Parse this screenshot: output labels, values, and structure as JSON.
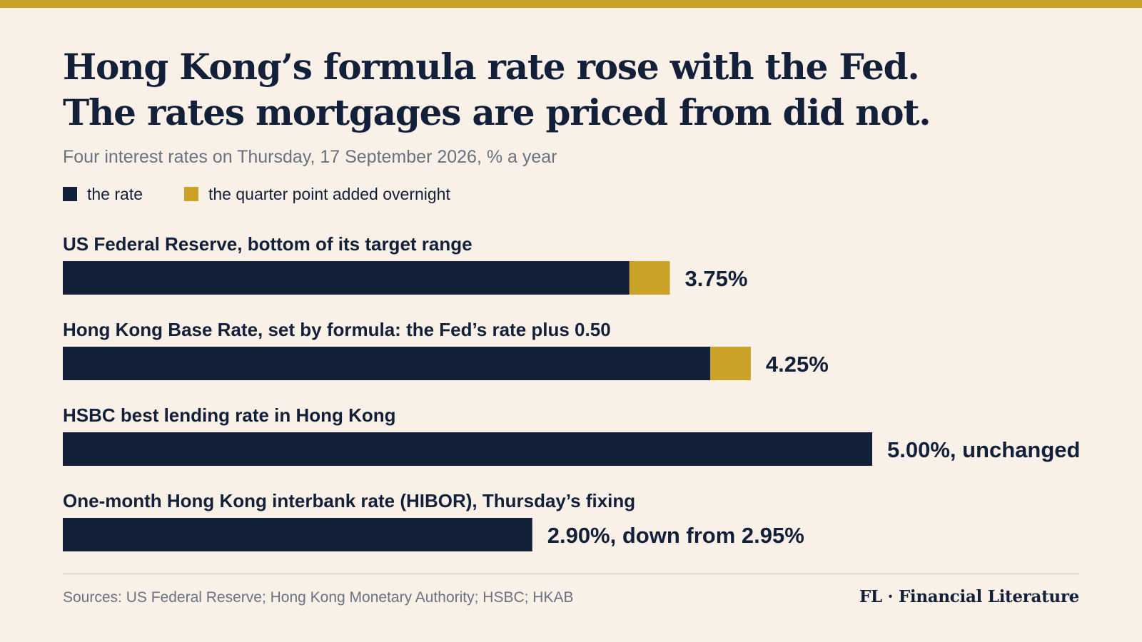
{
  "header": {
    "title_line1": "Hong Kong’s formula rate rose with the Fed.",
    "title_line2": "The rates mortgages are priced from did not.",
    "subtitle": "Four interest rates on Thursday, 17 September 2026, % a year"
  },
  "legend": {
    "items": [
      {
        "label": "the rate",
        "color": "#13203a"
      },
      {
        "label": "the quarter point added overnight",
        "color": "#c9a227"
      }
    ]
  },
  "chart_data": {
    "type": "bar",
    "orientation": "horizontal",
    "stacked": true,
    "xlim": [
      0,
      5.0
    ],
    "grid": false,
    "legend_placement": "top-left",
    "categories": [
      "US Federal Reserve, bottom of its target range",
      "Hong Kong Base Rate, set by formula: the Fed’s rate plus 0.50",
      "HSBC best lending rate in Hong Kong",
      "One-month Hong Kong interbank rate (HIBOR), Thursday’s fixing"
    ],
    "series": [
      {
        "name": "the rate",
        "color": "#13203a",
        "values": [
          3.5,
          4.0,
          5.0,
          2.9
        ]
      },
      {
        "name": "the quarter point added overnight",
        "color": "#c9a227",
        "values": [
          0.25,
          0.25,
          0,
          0
        ]
      }
    ],
    "totals": [
      3.75,
      4.25,
      5.0,
      2.9
    ],
    "data_labels": [
      "3.75%",
      "4.25%",
      "5.00%, unchanged",
      "2.90%, down from 2.95%"
    ]
  },
  "footer": {
    "sources": "Sources: US Federal Reserve; Hong Kong Monetary Authority; HSBC; HKAB",
    "brand": "FL · Financial Literature"
  }
}
